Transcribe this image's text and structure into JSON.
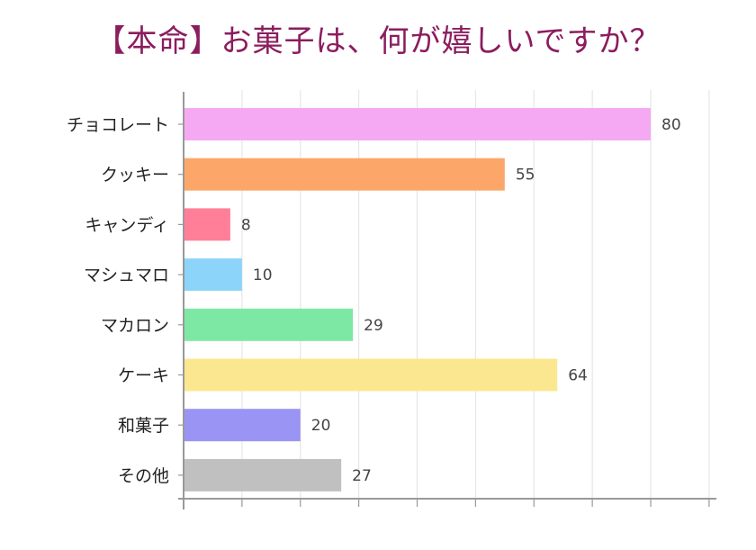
{
  "chart_data": {
    "type": "bar",
    "orientation": "horizontal",
    "title": "【本命】お菓子は、何が嬉しいですか？",
    "categories": [
      "チョコレート",
      "クッキー",
      "キャンディ",
      "マシュマロ",
      "マカロン",
      "ケーキ",
      "和菓子",
      "その他"
    ],
    "values": [
      80,
      55,
      8,
      10,
      29,
      64,
      20,
      27
    ],
    "colors": [
      "#f5a9f2",
      "#fca66a",
      "#ff7f99",
      "#8dd4fa",
      "#7de8a4",
      "#fbe78f",
      "#9a94f4",
      "#c0c0c0"
    ],
    "xlim": [
      0,
      90
    ],
    "grid": true,
    "legend": "none",
    "title_color": "#8b1d5e"
  }
}
